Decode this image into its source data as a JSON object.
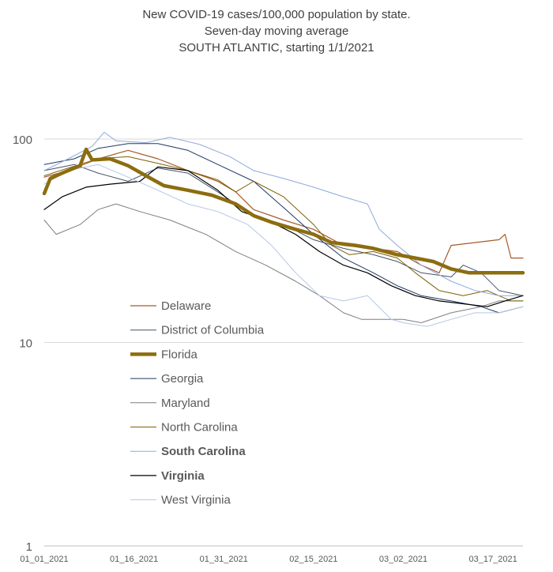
{
  "chart_data": {
    "type": "line",
    "title": "New COVID-19 cases/100,000 population by state.",
    "subtitle_1": "Seven-day moving average",
    "subtitle_2": "SOUTH ATLANTIC, starting 1/1/2021",
    "y_scale": "log",
    "ylim": [
      1,
      140
    ],
    "y_ticks": [
      {
        "value": 1,
        "label": "1"
      },
      {
        "value": 10,
        "label": "10"
      },
      {
        "value": 100,
        "label": "100"
      }
    ],
    "xlim": [
      "2021-01-01",
      "2021-03-22"
    ],
    "x_ticks": [
      {
        "date": "2021-01-01",
        "label": "01_01_2021"
      },
      {
        "date": "2021-01-16",
        "label": "01_16_2021"
      },
      {
        "date": "2021-01-31",
        "label": "01_31_2021"
      },
      {
        "date": "2021-02-15",
        "label": "02_15_2021"
      },
      {
        "date": "2021-03-02",
        "label": "03_02_2021"
      },
      {
        "date": "2021-03-17",
        "label": "03_17_2021"
      }
    ],
    "grid": "horizontal",
    "legend": "bottom-left",
    "series": [
      {
        "name": "Delaware",
        "color": "#a45a2a",
        "width": 1.2,
        "bold": false,
        "points": [
          [
            "2021-01-01",
            65
          ],
          [
            "2021-01-05",
            70
          ],
          [
            "2021-01-10",
            80
          ],
          [
            "2021-01-15",
            88
          ],
          [
            "2021-01-20",
            80
          ],
          [
            "2021-01-25",
            70
          ],
          [
            "2021-01-30",
            62
          ],
          [
            "2021-02-02",
            55
          ],
          [
            "2021-02-05",
            45
          ],
          [
            "2021-02-10",
            40
          ],
          [
            "2021-02-15",
            36
          ],
          [
            "2021-02-20",
            30
          ],
          [
            "2021-02-25",
            29
          ],
          [
            "2021-03-01",
            28
          ],
          [
            "2021-03-05",
            24
          ],
          [
            "2021-03-08",
            22
          ],
          [
            "2021-03-10",
            30
          ],
          [
            "2021-03-14",
            31
          ],
          [
            "2021-03-18",
            32
          ],
          [
            "2021-03-19",
            34
          ],
          [
            "2021-03-20",
            26
          ],
          [
            "2021-03-22",
            26
          ]
        ]
      },
      {
        "name": "District of Columbia",
        "color": "#44546a",
        "width": 1.0,
        "bold": false,
        "points": [
          [
            "2021-01-01",
            70
          ],
          [
            "2021-01-06",
            75
          ],
          [
            "2021-01-10",
            68
          ],
          [
            "2021-01-15",
            62
          ],
          [
            "2021-01-20",
            72
          ],
          [
            "2021-01-25",
            68
          ],
          [
            "2021-01-30",
            55
          ],
          [
            "2021-02-05",
            42
          ],
          [
            "2021-02-10",
            38
          ],
          [
            "2021-02-15",
            32
          ],
          [
            "2021-02-20",
            29
          ],
          [
            "2021-02-25",
            27
          ],
          [
            "2021-03-01",
            25
          ],
          [
            "2021-03-05",
            22
          ],
          [
            "2021-03-10",
            21
          ],
          [
            "2021-03-12",
            24
          ],
          [
            "2021-03-15",
            22
          ],
          [
            "2021-03-18",
            18
          ],
          [
            "2021-03-22",
            17
          ]
        ]
      },
      {
        "name": "Florida",
        "color": "#8c6d0f",
        "width": 4.5,
        "bold": false,
        "points": [
          [
            "2021-01-01",
            54
          ],
          [
            "2021-01-02",
            64
          ],
          [
            "2021-01-04",
            68
          ],
          [
            "2021-01-07",
            74
          ],
          [
            "2021-01-08",
            89
          ],
          [
            "2021-01-09",
            79
          ],
          [
            "2021-01-12",
            80
          ],
          [
            "2021-01-15",
            74
          ],
          [
            "2021-01-18",
            66
          ],
          [
            "2021-01-21",
            59
          ],
          [
            "2021-01-25",
            56
          ],
          [
            "2021-01-29",
            53
          ],
          [
            "2021-02-02",
            48
          ],
          [
            "2021-02-05",
            42
          ],
          [
            "2021-02-08",
            39
          ],
          [
            "2021-02-12",
            36
          ],
          [
            "2021-02-15",
            34
          ],
          [
            "2021-02-18",
            31
          ],
          [
            "2021-02-22",
            30
          ],
          [
            "2021-02-25",
            29
          ],
          [
            "2021-03-01",
            27
          ],
          [
            "2021-03-04",
            26
          ],
          [
            "2021-03-07",
            25
          ],
          [
            "2021-03-10",
            23
          ],
          [
            "2021-03-13",
            22
          ],
          [
            "2021-03-17",
            22
          ],
          [
            "2021-03-22",
            22
          ]
        ]
      },
      {
        "name": "Georgia",
        "color": "#1f3864",
        "width": 1.0,
        "bold": false,
        "points": [
          [
            "2021-01-01",
            75
          ],
          [
            "2021-01-06",
            80
          ],
          [
            "2021-01-10",
            90
          ],
          [
            "2021-01-15",
            95
          ],
          [
            "2021-01-20",
            95
          ],
          [
            "2021-01-25",
            88
          ],
          [
            "2021-01-30",
            75
          ],
          [
            "2021-02-05",
            62
          ],
          [
            "2021-02-10",
            46
          ],
          [
            "2021-02-15",
            34
          ],
          [
            "2021-02-20",
            26
          ],
          [
            "2021-02-25",
            22
          ],
          [
            "2021-03-01",
            19
          ],
          [
            "2021-03-05",
            17
          ],
          [
            "2021-03-10",
            16
          ],
          [
            "2021-03-15",
            15
          ],
          [
            "2021-03-18",
            14
          ],
          [
            "2021-03-22",
            15
          ]
        ]
      },
      {
        "name": "Maryland",
        "color": "#7f7f7f",
        "width": 1.0,
        "bold": false,
        "points": [
          [
            "2021-01-01",
            40
          ],
          [
            "2021-01-03",
            34
          ],
          [
            "2021-01-07",
            38
          ],
          [
            "2021-01-10",
            45
          ],
          [
            "2021-01-13",
            48
          ],
          [
            "2021-01-17",
            44
          ],
          [
            "2021-01-22",
            40
          ],
          [
            "2021-01-28",
            34
          ],
          [
            "2021-02-02",
            28
          ],
          [
            "2021-02-07",
            24
          ],
          [
            "2021-02-12",
            20
          ],
          [
            "2021-02-16",
            17
          ],
          [
            "2021-02-20",
            14
          ],
          [
            "2021-02-23",
            13
          ],
          [
            "2021-02-27",
            13
          ],
          [
            "2021-03-02",
            13
          ],
          [
            "2021-03-05",
            12.5
          ],
          [
            "2021-03-10",
            14
          ],
          [
            "2021-03-15",
            15
          ],
          [
            "2021-03-18",
            16
          ],
          [
            "2021-03-22",
            16
          ]
        ]
      },
      {
        "name": "North Carolina",
        "color": "#7f6000",
        "width": 1.0,
        "bold": false,
        "points": [
          [
            "2021-01-01",
            66
          ],
          [
            "2021-01-05",
            72
          ],
          [
            "2021-01-10",
            80
          ],
          [
            "2021-01-15",
            82
          ],
          [
            "2021-01-20",
            76
          ],
          [
            "2021-01-25",
            70
          ],
          [
            "2021-01-30",
            63
          ],
          [
            "2021-02-02",
            55
          ],
          [
            "2021-02-05",
            62
          ],
          [
            "2021-02-10",
            52
          ],
          [
            "2021-02-15",
            38
          ],
          [
            "2021-02-18",
            30
          ],
          [
            "2021-02-21",
            27
          ],
          [
            "2021-02-25",
            28
          ],
          [
            "2021-03-01",
            26
          ],
          [
            "2021-03-04",
            22
          ],
          [
            "2021-03-08",
            18
          ],
          [
            "2021-03-12",
            17
          ],
          [
            "2021-03-16",
            18
          ],
          [
            "2021-03-20",
            16
          ],
          [
            "2021-03-22",
            16
          ]
        ]
      },
      {
        "name": "South Carolina",
        "color": "#8eaadb",
        "width": 1.0,
        "bold": true,
        "points": [
          [
            "2021-01-01",
            70
          ],
          [
            "2021-01-05",
            80
          ],
          [
            "2021-01-09",
            92
          ],
          [
            "2021-01-11",
            108
          ],
          [
            "2021-01-13",
            98
          ],
          [
            "2021-01-18",
            96
          ],
          [
            "2021-01-22",
            102
          ],
          [
            "2021-01-27",
            94
          ],
          [
            "2021-02-01",
            82
          ],
          [
            "2021-02-05",
            70
          ],
          [
            "2021-02-10",
            64
          ],
          [
            "2021-02-15",
            58
          ],
          [
            "2021-02-20",
            52
          ],
          [
            "2021-02-24",
            48
          ],
          [
            "2021-02-26",
            36
          ],
          [
            "2021-03-01",
            30
          ],
          [
            "2021-03-05",
            24
          ],
          [
            "2021-03-10",
            20
          ],
          [
            "2021-03-14",
            18
          ],
          [
            "2021-03-18",
            17
          ],
          [
            "2021-03-22",
            17
          ]
        ]
      },
      {
        "name": "Virginia",
        "color": "#000000",
        "width": 1.2,
        "bold": true,
        "points": [
          [
            "2021-01-01",
            45
          ],
          [
            "2021-01-04",
            52
          ],
          [
            "2021-01-08",
            58
          ],
          [
            "2021-01-12",
            60
          ],
          [
            "2021-01-17",
            62
          ],
          [
            "2021-01-20",
            73
          ],
          [
            "2021-01-25",
            70
          ],
          [
            "2021-01-30",
            56
          ],
          [
            "2021-02-03",
            44
          ],
          [
            "2021-02-08",
            39
          ],
          [
            "2021-02-12",
            34
          ],
          [
            "2021-02-16",
            28
          ],
          [
            "2021-02-20",
            24
          ],
          [
            "2021-02-24",
            22
          ],
          [
            "2021-02-28",
            19
          ],
          [
            "2021-03-04",
            17
          ],
          [
            "2021-03-08",
            16
          ],
          [
            "2021-03-12",
            15.5
          ],
          [
            "2021-03-16",
            15
          ],
          [
            "2021-03-19",
            16
          ],
          [
            "2021-03-22",
            17
          ]
        ]
      },
      {
        "name": "West Virginia",
        "color": "#b4c7e7",
        "width": 1.0,
        "bold": false,
        "points": [
          [
            "2021-01-01",
            60
          ],
          [
            "2021-01-05",
            70
          ],
          [
            "2021-01-10",
            75
          ],
          [
            "2021-01-15",
            65
          ],
          [
            "2021-01-20",
            56
          ],
          [
            "2021-01-25",
            48
          ],
          [
            "2021-01-30",
            44
          ],
          [
            "2021-02-04",
            38
          ],
          [
            "2021-02-08",
            30
          ],
          [
            "2021-02-12",
            22
          ],
          [
            "2021-02-16",
            17
          ],
          [
            "2021-02-20",
            16
          ],
          [
            "2021-02-24",
            17
          ],
          [
            "2021-02-28",
            13
          ],
          [
            "2021-03-02",
            12.5
          ],
          [
            "2021-03-06",
            12
          ],
          [
            "2021-03-10",
            13
          ],
          [
            "2021-03-14",
            14
          ],
          [
            "2021-03-18",
            14
          ],
          [
            "2021-03-22",
            15
          ]
        ]
      }
    ]
  }
}
